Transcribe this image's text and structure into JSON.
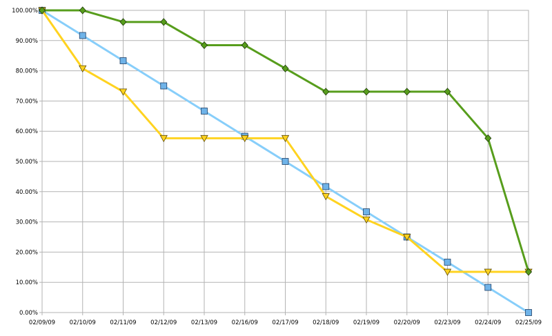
{
  "chart_data": {
    "type": "line",
    "title": "",
    "xlabel": "",
    "ylabel": "",
    "ylim": [
      0,
      100
    ],
    "y_ticks": [
      0,
      10,
      20,
      30,
      40,
      50,
      60,
      70,
      80,
      90,
      100
    ],
    "y_tick_labels": [
      "0.00%",
      "10.00%",
      "20.00%",
      "30.00%",
      "40.00%",
      "50.00%",
      "60.00%",
      "70.00%",
      "80.00%",
      "90.00%",
      "100.00%"
    ],
    "grid": true,
    "legend": "none",
    "categories": [
      "02/09/09",
      "02/10/09",
      "02/11/09",
      "02/12/09",
      "02/13/09",
      "02/16/09",
      "02/17/09",
      "02/18/09",
      "02/19/09",
      "02/20/09",
      "02/23/09",
      "02/24/09",
      "02/25/09"
    ],
    "series": [
      {
        "color": "#87cefa",
        "marker": "square",
        "marker_color": "#6fb3e8",
        "values": [
          100,
          91.67,
          83.33,
          75,
          66.67,
          58.33,
          50,
          41.67,
          33.33,
          25,
          16.67,
          8.33,
          0
        ]
      },
      {
        "color": "#ffd320",
        "marker": "triangle-down",
        "marker_color": "#ffd320",
        "values": [
          100,
          80.77,
          73.08,
          57.69,
          57.69,
          57.69,
          57.69,
          38.46,
          30.77,
          25,
          13.46,
          13.46,
          13.46
        ]
      },
      {
        "color": "#579d1c",
        "marker": "diamond",
        "marker_color": "#579d1c",
        "values": [
          100,
          100,
          96.15,
          96.15,
          88.46,
          88.46,
          80.77,
          73.08,
          73.08,
          73.08,
          73.08,
          57.69,
          13.46
        ]
      }
    ]
  }
}
